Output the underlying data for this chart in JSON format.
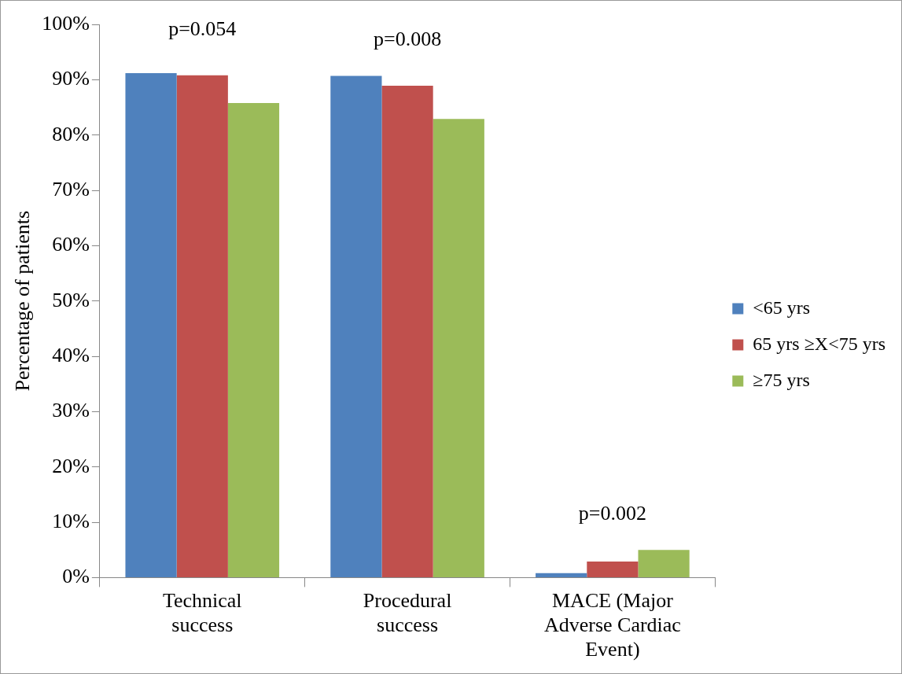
{
  "chart_data": {
    "type": "bar",
    "ylabel": "Percentage of patients",
    "categories": [
      "Technical success",
      "Procedural success",
      "MACE (Major Adverse Cardiac Event)"
    ],
    "series": [
      {
        "name": "<65 yrs",
        "color": "#4f81bd",
        "values": [
          91.2,
          90.7,
          0.8
        ]
      },
      {
        "name": "65 yrs ≥X<75 yrs",
        "color": "#c0504d",
        "values": [
          90.8,
          88.9,
          2.9
        ]
      },
      {
        "name": "≥75 yrs",
        "color": "#9bbb59",
        "values": [
          85.8,
          82.9,
          5.0
        ]
      }
    ],
    "ylim": [
      0,
      100
    ],
    "yticks": [
      {
        "value": 0,
        "label": "0%"
      },
      {
        "value": 10,
        "label": "10%"
      },
      {
        "value": 20,
        "label": "20%"
      },
      {
        "value": 30,
        "label": "30%"
      },
      {
        "value": 40,
        "label": "40%"
      },
      {
        "value": 50,
        "label": "50%"
      },
      {
        "value": 60,
        "label": "60%"
      },
      {
        "value": 70,
        "label": "70%"
      },
      {
        "value": 80,
        "label": "80%"
      },
      {
        "value": 90,
        "label": "90%"
      },
      {
        "value": 100,
        "label": "100%"
      }
    ],
    "annotations": [
      "p=0.054",
      "p=0.008",
      "p=0.002"
    ],
    "grid": false,
    "legend": "right"
  }
}
